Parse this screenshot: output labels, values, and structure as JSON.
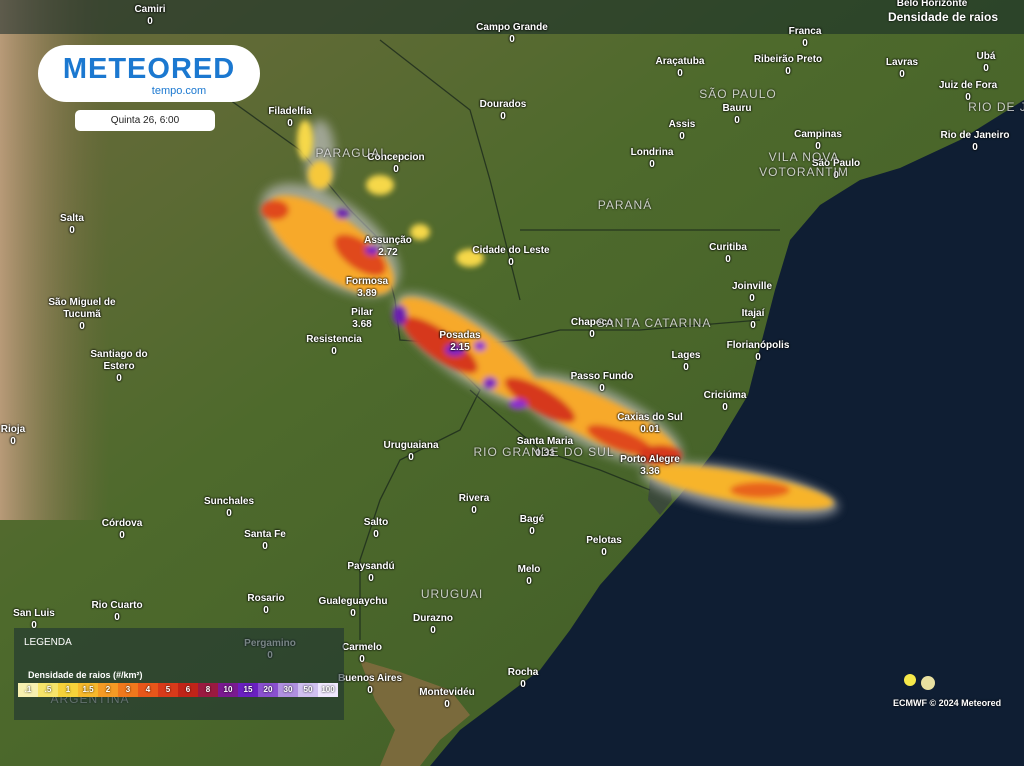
{
  "header": {
    "logo": "METEORED",
    "logo_sub": "tempo.com",
    "date": "Quinta 26, 6:00",
    "layer": "Densidade de raios"
  },
  "regions": [
    "PARAGUAI",
    "SÃO PAULO",
    "VILA NOVA",
    "VOTORANTIM",
    "PARANÁ",
    "SANTA CATARINA",
    "RIO GRANDE DO SUL",
    "URUGUAI",
    "ARGENTINA",
    "RIO DE JA"
  ],
  "cities": [
    {
      "name": "Camiri",
      "value": 0
    },
    {
      "name": "Campo Grande",
      "value": 0
    },
    {
      "name": "Franca",
      "value": 0
    },
    {
      "name": "Belo Horizonte"
    },
    {
      "name": "Araçatuba",
      "value": 0
    },
    {
      "name": "Ribeirão Preto",
      "value": 0
    },
    {
      "name": "Lavras",
      "value": 0
    },
    {
      "name": "Ubá",
      "value": 0
    },
    {
      "name": "Juiz de Fora",
      "value": 0
    },
    {
      "name": "Filadelfia",
      "value": 0
    },
    {
      "name": "Dourados",
      "value": 0
    },
    {
      "name": "Bauru",
      "value": 0
    },
    {
      "name": "Assis",
      "value": 0
    },
    {
      "name": "Campinas",
      "value": 0
    },
    {
      "name": "Rio de Janeiro",
      "value": 0
    },
    {
      "name": "Concepcion",
      "value": 0
    },
    {
      "name": "Londrina",
      "value": 0
    },
    {
      "name": "São Paulo",
      "value": 0
    },
    {
      "name": "Salta",
      "value": 0
    },
    {
      "name": "Assunção",
      "value": 2.72
    },
    {
      "name": "Cidade do Leste",
      "value": 0
    },
    {
      "name": "Curitiba",
      "value": 0
    },
    {
      "name": "Formosa",
      "value": 3.89
    },
    {
      "name": "Joinville",
      "value": 0
    },
    {
      "name": "São Miguel de Tucumã",
      "value": 0
    },
    {
      "name": "Pilar",
      "value": 3.68
    },
    {
      "name": "Itajaí",
      "value": 0
    },
    {
      "name": "Chapeco",
      "value": 0
    },
    {
      "name": "Posadas",
      "value": 2.15
    },
    {
      "name": "Resistencia",
      "value": 0
    },
    {
      "name": "Florianópolis",
      "value": 0
    },
    {
      "name": "Lages",
      "value": 0
    },
    {
      "name": "Santiago do Estero",
      "value": 0
    },
    {
      "name": "Passo Fundo",
      "value": 0
    },
    {
      "name": "Criciúma",
      "value": 0
    },
    {
      "name": "Caxias do Sul",
      "value": 0.01
    },
    {
      "name": "Rioja",
      "value": 0
    },
    {
      "name": "Santa Maria",
      "value": 0.33
    },
    {
      "name": "Uruguaiana",
      "value": 0
    },
    {
      "name": "Porto Alegre",
      "value": 3.36
    },
    {
      "name": "Rivera",
      "value": 0
    },
    {
      "name": "Sunchales",
      "value": 0
    },
    {
      "name": "Bagé",
      "value": 0
    },
    {
      "name": "Córdova",
      "value": 0
    },
    {
      "name": "Salto",
      "value": 0
    },
    {
      "name": "Santa Fe",
      "value": 0
    },
    {
      "name": "Pelotas",
      "value": 0
    },
    {
      "name": "Paysandú",
      "value": 0
    },
    {
      "name": "Melo",
      "value": 0
    },
    {
      "name": "Rosario",
      "value": 0
    },
    {
      "name": "Gualeguaychu",
      "value": 0
    },
    {
      "name": "Rio Cuarto",
      "value": 0
    },
    {
      "name": "San Luis",
      "value": 0
    },
    {
      "name": "Durazno",
      "value": 0
    },
    {
      "name": "Pergamino",
      "value": 0
    },
    {
      "name": "Carmelo",
      "value": 0
    },
    {
      "name": "Rocha",
      "value": 0
    },
    {
      "name": "Buenos Aires",
      "value": 0
    },
    {
      "name": "Montevidéu",
      "value": 0
    }
  ],
  "legend": {
    "title": "LEGENDA",
    "subtitle": "Densidade de raios (#/km²)",
    "labels": [
      ".1",
      ".5",
      "1",
      "1.5",
      "2",
      "3",
      "4",
      "5",
      "6",
      "8",
      "10",
      "15",
      "20",
      "30",
      "50",
      "100"
    ]
  },
  "footer": "ECMWF © 2024 Meteored"
}
